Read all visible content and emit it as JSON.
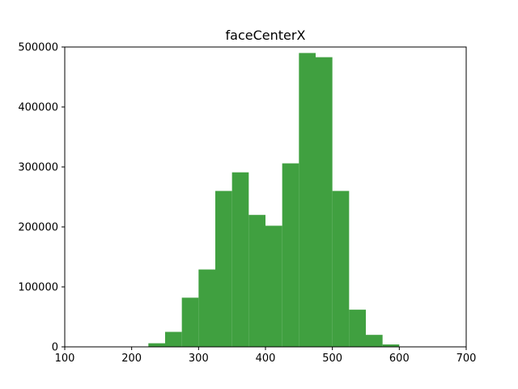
{
  "chart_data": {
    "type": "bar",
    "title": "faceCenterX",
    "xlabel": "",
    "ylabel": "",
    "xlim": [
      100,
      700
    ],
    "ylim": [
      0,
      500000
    ],
    "x_ticks": [
      100,
      200,
      300,
      400,
      500,
      600,
      700
    ],
    "y_ticks": [
      0,
      100000,
      200000,
      300000,
      400000,
      500000
    ],
    "grid": false,
    "bar_color": "#40a040",
    "bins": [
      {
        "x0": 225,
        "x1": 250,
        "value": 6000
      },
      {
        "x0": 250,
        "x1": 275,
        "value": 25000
      },
      {
        "x0": 275,
        "x1": 300,
        "value": 82000
      },
      {
        "x0": 300,
        "x1": 325,
        "value": 129000
      },
      {
        "x0": 325,
        "x1": 350,
        "value": 260000
      },
      {
        "x0": 350,
        "x1": 375,
        "value": 291000
      },
      {
        "x0": 375,
        "x1": 400,
        "value": 220000
      },
      {
        "x0": 400,
        "x1": 425,
        "value": 202000
      },
      {
        "x0": 425,
        "x1": 450,
        "value": 306000
      },
      {
        "x0": 450,
        "x1": 475,
        "value": 490000
      },
      {
        "x0": 475,
        "x1": 500,
        "value": 483000
      },
      {
        "x0": 500,
        "x1": 525,
        "value": 260000
      },
      {
        "x0": 525,
        "x1": 550,
        "value": 62000
      },
      {
        "x0": 550,
        "x1": 575,
        "value": 20000
      },
      {
        "x0": 575,
        "x1": 600,
        "value": 4000
      }
    ]
  }
}
